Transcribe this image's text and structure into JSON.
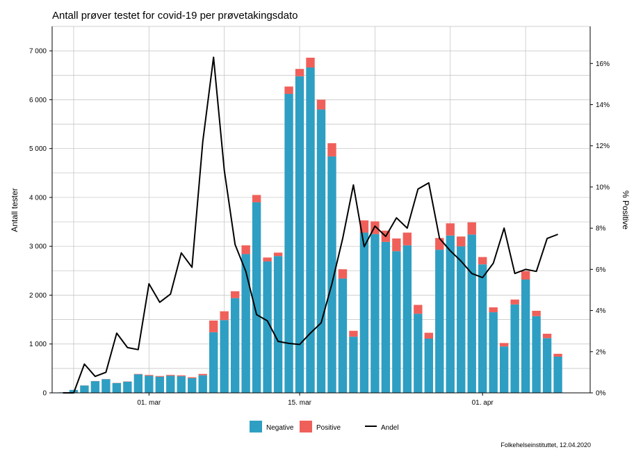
{
  "chart_data": {
    "type": "bar",
    "title": "Antall prøver testet for covid-19 per prøvetakingsdato",
    "ylabel": "Antall tester",
    "y2label": "% Positive",
    "ylim": [
      0,
      7500
    ],
    "y2lim": [
      0,
      17.8
    ],
    "yticks": [
      "0",
      "1 000",
      "2 000",
      "3 000",
      "4 000",
      "5 000",
      "6 000",
      "7 000"
    ],
    "ytick_values": [
      0,
      1000,
      2000,
      3000,
      4000,
      5000,
      6000,
      7000
    ],
    "y2ticks": [
      "0%",
      "2%",
      "4%",
      "6%",
      "8%",
      "10%",
      "12%",
      "14%",
      "16%"
    ],
    "y2tick_values": [
      0,
      2,
      4,
      6,
      8,
      10,
      12,
      14,
      16
    ],
    "x_labels": [
      {
        "label": "01. mar",
        "date": "2020-03-01"
      },
      {
        "label": "15. mar",
        "date": "2020-03-15"
      },
      {
        "label": "01. apr",
        "date": "2020-04-01"
      }
    ],
    "x_range": [
      "2020-02-21",
      "2020-04-11"
    ],
    "grid": true,
    "legend_position": "bottom",
    "stacked": true,
    "dates": [
      "2020-02-22",
      "2020-02-23",
      "2020-02-24",
      "2020-02-25",
      "2020-02-26",
      "2020-02-27",
      "2020-02-28",
      "2020-02-29",
      "2020-03-01",
      "2020-03-02",
      "2020-03-03",
      "2020-03-04",
      "2020-03-05",
      "2020-03-06",
      "2020-03-07",
      "2020-03-08",
      "2020-03-09",
      "2020-03-10",
      "2020-03-11",
      "2020-03-12",
      "2020-03-13",
      "2020-03-14",
      "2020-03-15",
      "2020-03-16",
      "2020-03-17",
      "2020-03-18",
      "2020-03-19",
      "2020-03-20",
      "2020-03-21",
      "2020-03-22",
      "2020-03-23",
      "2020-03-24",
      "2020-03-25",
      "2020-03-26",
      "2020-03-27",
      "2020-03-28",
      "2020-03-29",
      "2020-03-30",
      "2020-03-31",
      "2020-04-01",
      "2020-04-02",
      "2020-04-03",
      "2020-04-04",
      "2020-04-05",
      "2020-04-06",
      "2020-04-07",
      "2020-04-08",
      "2020-04-09",
      "2020-04-10"
    ],
    "series": [
      {
        "name": "Negative",
        "color": "#2E9FC2",
        "values": [
          10,
          60,
          150,
          240,
          280,
          200,
          230,
          380,
          350,
          330,
          350,
          340,
          300,
          360,
          1240,
          1490,
          1940,
          2840,
          3900,
          2690,
          2800,
          6120,
          6480,
          6660,
          5800,
          4840,
          2340,
          1150,
          3280,
          3250,
          3090,
          2900,
          3020,
          1620,
          1110,
          2930,
          3220,
          3000,
          3240,
          2630,
          1650,
          950,
          1810,
          2320,
          1570,
          1120,
          740,
          0,
          0
        ]
      },
      {
        "name": "Positive",
        "color": "#F0605A",
        "values": [
          0,
          0,
          2,
          3,
          3,
          4,
          5,
          8,
          16,
          15,
          17,
          18,
          20,
          28,
          240,
          180,
          140,
          180,
          150,
          80,
          70,
          150,
          150,
          200,
          200,
          270,
          190,
          120,
          250,
          260,
          230,
          260,
          260,
          180,
          120,
          240,
          250,
          200,
          250,
          150,
          100,
          70,
          100,
          170,
          110,
          90,
          60,
          0,
          0
        ]
      },
      {
        "name": "Andel",
        "color": "#000000",
        "values": [
          0,
          0,
          1.4,
          0.8,
          1.0,
          2.9,
          2.2,
          2.1,
          5.3,
          4.4,
          4.8,
          6.8,
          6.1,
          12.2,
          16.3,
          10.8,
          7.2,
          5.9,
          3.8,
          3.5,
          2.5,
          2.4,
          2.35,
          2.9,
          3.4,
          5.3,
          7.5,
          10.1,
          7.1,
          8.1,
          7.6,
          8.5,
          8.0,
          9.9,
          10.2,
          7.5,
          6.9,
          6.4,
          5.8,
          5.6,
          6.3,
          8.0,
          5.8,
          6.0,
          5.9,
          7.5,
          7.7,
          null,
          null
        ]
      }
    ]
  },
  "legend": {
    "negative_label": "Negative",
    "positive_label": "Positive",
    "andel_label": "Andel"
  },
  "source": "Folkehelseinstituttet, 12.04.2020",
  "colors": {
    "negative": "#2E9FC2",
    "positive": "#F0605A",
    "andel": "#000000",
    "grid": "#BFBFBF"
  }
}
